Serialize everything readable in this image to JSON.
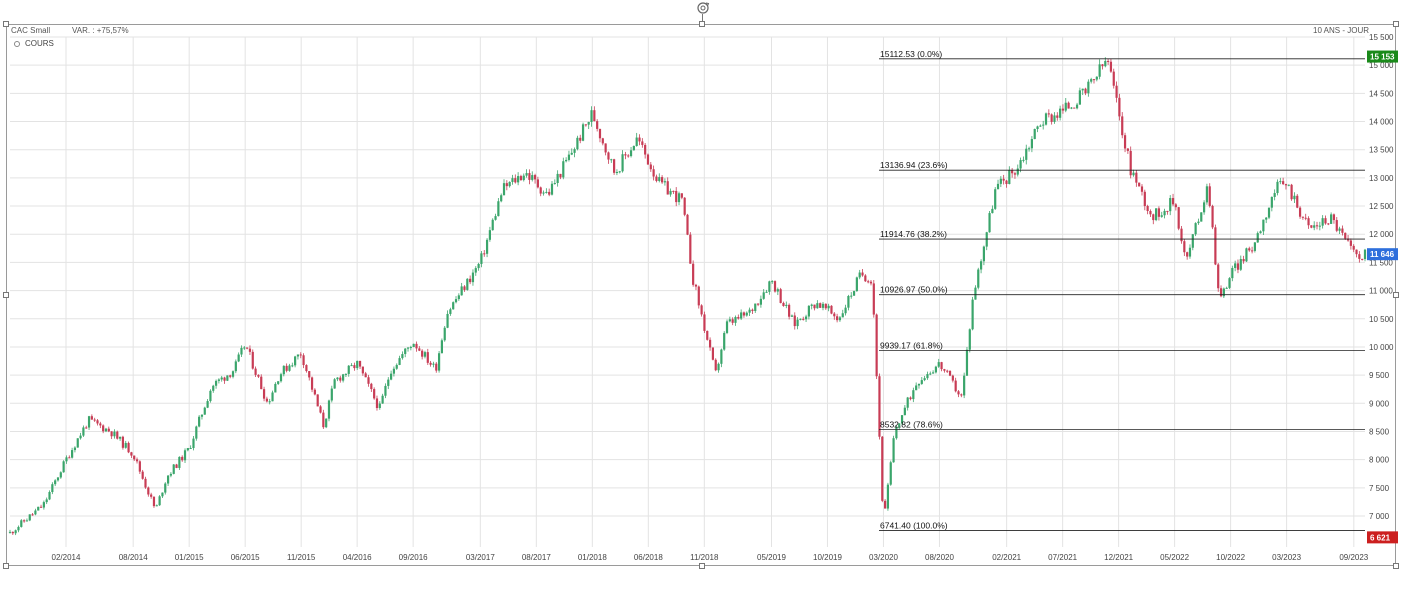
{
  "header": {
    "instrument": "CAC Small",
    "variation": "VAR. : +75,57%",
    "period": "10 ANS - JOUR"
  },
  "legend": {
    "label": "COURS"
  },
  "chart_data": {
    "type": "line",
    "style": "candlestick",
    "series": [
      {
        "name": "COURS",
        "x": [
          "2013-09",
          "2013-12",
          "2014-02",
          "2014-04",
          "2014-06",
          "2014-08",
          "2014-10",
          "2014-11",
          "2015-01",
          "2015-03",
          "2015-05",
          "2015-06",
          "2015-08",
          "2015-09",
          "2015-11",
          "2016-01",
          "2016-02",
          "2016-04",
          "2016-06",
          "2016-07",
          "2016-09",
          "2016-11",
          "2016-12",
          "2017-03",
          "2017-05",
          "2017-07",
          "2017-09",
          "2017-11",
          "2018-01",
          "2018-03",
          "2018-05",
          "2018-07",
          "2018-09",
          "2018-10",
          "2018-12",
          "2019-01",
          "2019-03",
          "2019-05",
          "2019-07",
          "2019-09",
          "2019-11",
          "2020-01",
          "2020-02",
          "2020-03",
          "2020-04",
          "2020-06",
          "2020-08",
          "2020-10",
          "2020-11",
          "2021-01",
          "2021-03",
          "2021-05",
          "2021-07",
          "2021-09",
          "2021-11",
          "2022-01",
          "2022-03",
          "2022-05",
          "2022-06",
          "2022-08",
          "2022-09",
          "2022-10",
          "2022-12",
          "2023-02",
          "2023-03",
          "2023-05",
          "2023-07",
          "2023-09"
        ],
        "values": [
          6700,
          7200,
          8000,
          8700,
          8500,
          8100,
          7100,
          7700,
          8200,
          9300,
          9600,
          10050,
          9000,
          9500,
          9900,
          8600,
          9400,
          9700,
          8900,
          9600,
          10100,
          9600,
          10600,
          11500,
          12800,
          13100,
          12700,
          13400,
          14150,
          13100,
          13700,
          12900,
          12600,
          11200,
          9500,
          10400,
          10600,
          11200,
          10400,
          10800,
          10500,
          11300,
          11200,
          6850,
          8500,
          9400,
          9700,
          9100,
          10900,
          12800,
          13200,
          14000,
          14200,
          14500,
          15112,
          13200,
          12300,
          12600,
          11500,
          12900,
          10800,
          11300,
          11800,
          12800,
          12900,
          12100,
          12300,
          11646
        ]
      }
    ],
    "xlabel": "",
    "ylabel": "",
    "ylim": [
      6450,
      15500
    ],
    "y_ticks": [
      "7 000",
      "7 500",
      "8 000",
      "8 500",
      "9 000",
      "9 500",
      "10 000",
      "10 500",
      "11 000",
      "11 500",
      "12 000",
      "12 500",
      "13 000",
      "13 500",
      "14 000",
      "14 500",
      "15 000",
      "15 500"
    ],
    "x_ticks": [
      "02/2014",
      "08/2014",
      "01/2015",
      "06/2015",
      "11/2015",
      "04/2016",
      "09/2016",
      "03/2017",
      "08/2017",
      "01/2018",
      "06/2018",
      "11/2018",
      "05/2019",
      "10/2019",
      "03/2020",
      "08/2020",
      "02/2021",
      "07/2021",
      "12/2021",
      "05/2022",
      "10/2022",
      "03/2023",
      "09/2023"
    ],
    "fibonacci": [
      {
        "label": "15112.53  (0.0%)",
        "value": 15112.53
      },
      {
        "label": "13136.94  (23.6%)",
        "value": 13136.94
      },
      {
        "label": "11914.76  (38.2%)",
        "value": 11914.76
      },
      {
        "label": "10926.97  (50.0%)",
        "value": 10926.97
      },
      {
        "label": "9939.17  (61.8%)",
        "value": 9939.17
      },
      {
        "label": "8532.82  (78.6%)",
        "value": 8532.82
      },
      {
        "label": "6741.40  (100.0%)",
        "value": 6741.4
      }
    ],
    "price_badges": [
      {
        "text": "15 153",
        "value": 15153,
        "color": "#1a8a1a"
      },
      {
        "text": "11 646",
        "value": 11646,
        "color": "#2e6fdc"
      },
      {
        "text": "6 621",
        "value": 6621,
        "color": "#cc1f1f"
      }
    ],
    "up_color": "#3aa56b",
    "down_color": "#c83c55",
    "grid": true
  }
}
